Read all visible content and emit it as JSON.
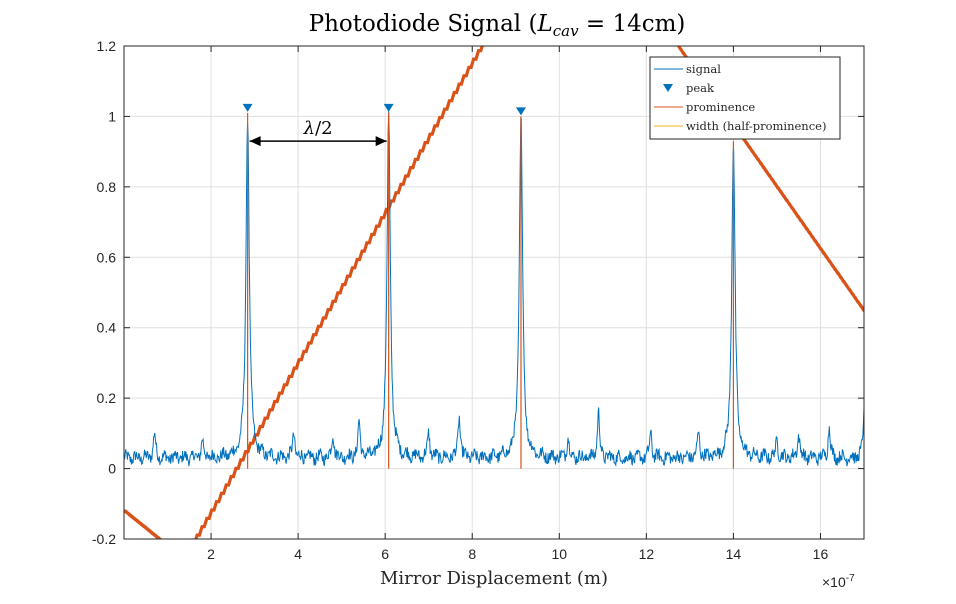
{
  "chart_data": {
    "type": "line",
    "title": {
      "main": "Photodiode Signal (",
      "var": "L",
      "sub": "cav",
      "rest": " = 14cm)"
    },
    "xlabel": "Mirror Displacement (m)",
    "ylabel": "",
    "x_multiplier": {
      "base": "×10",
      "exp": "-7"
    },
    "xlim": [
      0,
      1.7e-06
    ],
    "ylim": [
      -0.2,
      1.2
    ],
    "xticks": [
      2e-07,
      4e-07,
      6e-07,
      8e-07,
      1e-06,
      1.2e-06,
      1.4e-06,
      1.6e-06
    ],
    "xtick_labels": [
      "2",
      "4",
      "6",
      "8",
      "10",
      "12",
      "14",
      "16"
    ],
    "yticks": [
      -0.2,
      0,
      0.2,
      0.4,
      0.6,
      0.8,
      1,
      1.2
    ],
    "ytick_labels": [
      "-0.2",
      "0",
      "0.2",
      "0.4",
      "0.6",
      "0.8",
      "1",
      "1.2"
    ],
    "grid": true,
    "legend_position": "top-right",
    "series": [
      {
        "name": "signal",
        "kind": "line",
        "color": "#0072BD",
        "baseline": 0.03,
        "peaks": [
          {
            "x": 2.84e-07,
            "y": 1.01
          },
          {
            "x": 6.08e-07,
            "y": 1.01
          },
          {
            "x": 9.12e-07,
            "y": 1.0
          },
          {
            "x": 1.4e-06,
            "y": 0.93
          }
        ],
        "minor_peaks": [
          {
            "x": 7e-08,
            "y": 0.1
          },
          {
            "x": 1.8e-07,
            "y": 0.08
          },
          {
            "x": 3.9e-07,
            "y": 0.1
          },
          {
            "x": 4.8e-07,
            "y": 0.1
          },
          {
            "x": 5.4e-07,
            "y": 0.13
          },
          {
            "x": 7e-07,
            "y": 0.1
          },
          {
            "x": 7.7e-07,
            "y": 0.15
          },
          {
            "x": 1.02e-06,
            "y": 0.09
          },
          {
            "x": 1.09e-06,
            "y": 0.16
          },
          {
            "x": 1.21e-06,
            "y": 0.1
          },
          {
            "x": 1.32e-06,
            "y": 0.1
          },
          {
            "x": 1.5e-06,
            "y": 0.08
          },
          {
            "x": 1.55e-06,
            "y": 0.1
          },
          {
            "x": 1.62e-06,
            "y": 0.12
          },
          {
            "x": 1.7e-06,
            "y": 0.16
          }
        ]
      },
      {
        "name": "peak",
        "kind": "marker",
        "color": "#0072BD",
        "x": [
          2.84e-07,
          6.08e-07,
          9.12e-07,
          1.4e-06
        ],
        "y": [
          1.01,
          1.01,
          1.0,
          0.93
        ]
      },
      {
        "name": "prominence",
        "kind": "vline",
        "color": "#D95319",
        "x": [
          2.84e-07,
          6.08e-07,
          9.12e-07,
          1.4e-06
        ],
        "y_from": [
          0,
          0,
          0,
          0
        ],
        "y_to": [
          1.01,
          1.01,
          1.0,
          0.93
        ]
      },
      {
        "name": "width (half-prominence)",
        "kind": "line",
        "color": "#EDB120"
      }
    ],
    "ramp": {
      "color": "#D95319",
      "segments": [
        {
          "x": [
            0,
            1.4e-07
          ],
          "y": [
            -0.12,
            -0.26
          ]
        },
        {
          "x": [
            1.4e-07,
            9.2e-07
          ],
          "y": [
            -0.26,
            1.4
          ]
        },
        {
          "x": [
            1.24e-06,
            1.7e-06
          ],
          "y": [
            1.26,
            0.45
          ]
        }
      ]
    },
    "annotation": {
      "text_var": "λ",
      "text_rest": "/2",
      "x_start": 2.84e-07,
      "x_end": 6.08e-07,
      "y": 0.93
    }
  }
}
